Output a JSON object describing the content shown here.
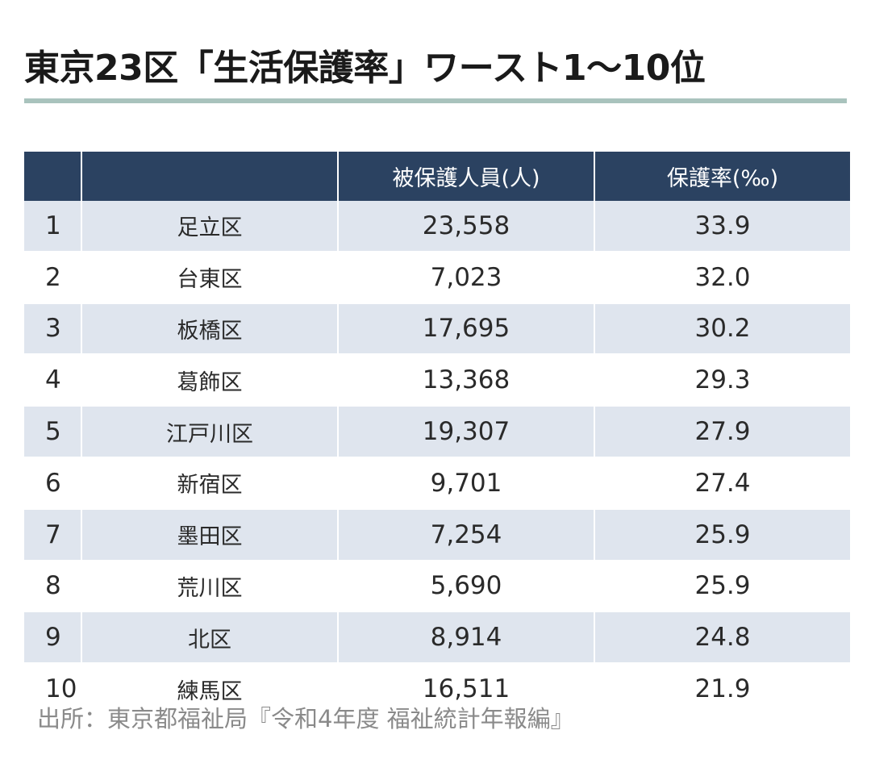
{
  "title": "東京23区「生活保護率」ワースト1～10位",
  "table": {
    "headers": [
      "",
      "",
      "被保護人員(人)",
      "保護率(‰)"
    ],
    "rows": [
      {
        "rank": "1",
        "ward": "足立区",
        "recipients": "23,558",
        "rate": "33.9"
      },
      {
        "rank": "2",
        "ward": "台東区",
        "recipients": "7,023",
        "rate": "32.0"
      },
      {
        "rank": "3",
        "ward": "板橋区",
        "recipients": "17,695",
        "rate": "30.2"
      },
      {
        "rank": "4",
        "ward": "葛飾区",
        "recipients": "13,368",
        "rate": "29.3"
      },
      {
        "rank": "5",
        "ward": "江戸川区",
        "recipients": "19,307",
        "rate": "27.9"
      },
      {
        "rank": "6",
        "ward": "新宿区",
        "recipients": "9,701",
        "rate": "27.4"
      },
      {
        "rank": "7",
        "ward": "墨田区",
        "recipients": "7,254",
        "rate": "25.9"
      },
      {
        "rank": "8",
        "ward": "荒川区",
        "recipients": "5,690",
        "rate": "25.9"
      },
      {
        "rank": "9",
        "ward": "北区",
        "recipients": "8,914",
        "rate": "24.8"
      },
      {
        "rank": "10",
        "ward": "練馬区",
        "recipients": "16,511",
        "rate": "21.9"
      }
    ]
  },
  "source": "出所：東京都福祉局『令和4年度 福祉統計年報編』",
  "colors": {
    "header_bg": "#2b4261",
    "stripe_bg": "#dfe5ee",
    "rule": "#a9c3bd"
  }
}
